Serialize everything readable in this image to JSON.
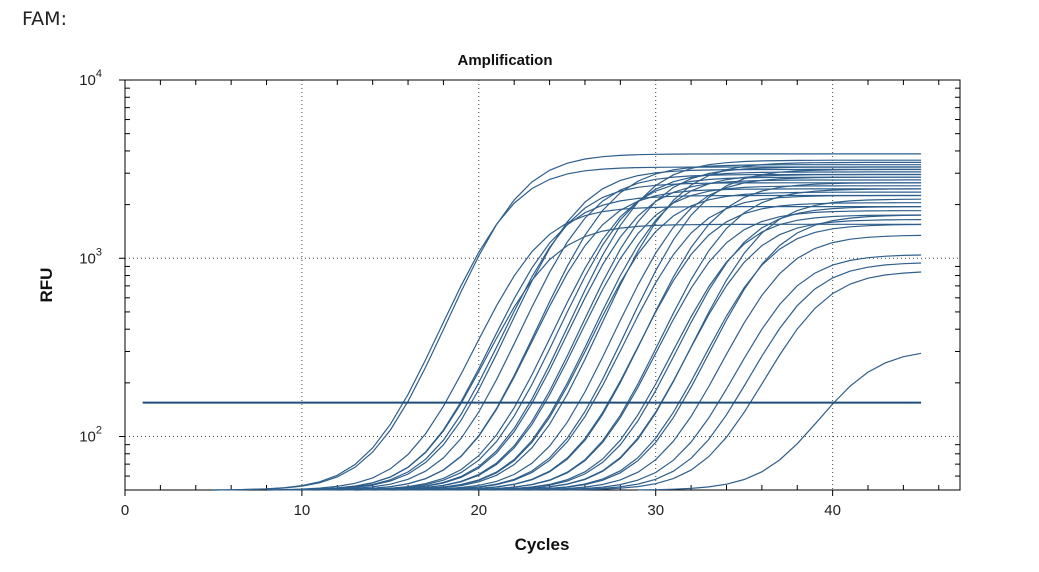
{
  "panel": {
    "label": "FAM:"
  },
  "chart_data": {
    "type": "line",
    "title": "Amplification",
    "xlabel": "Cycles",
    "ylabel": "RFU",
    "xlim": [
      0,
      47.2
    ],
    "ylim_log10": [
      1.7,
      4.0
    ],
    "y_scale": "log",
    "x_ticks": [
      0,
      10,
      20,
      30,
      40
    ],
    "y_ticks": [
      {
        "value": 100,
        "base": "10",
        "exp": "2"
      },
      {
        "value": 1000,
        "base": "10",
        "exp": "3"
      },
      {
        "value": 10000,
        "base": "10",
        "exp": "4"
      }
    ],
    "grid": true,
    "threshold": {
      "value": 155,
      "x_start": 1,
      "x_end": 45
    },
    "line_color": "#2f5f8c",
    "threshold_color": "#1f4e79",
    "end_cycle": 45,
    "curve_model": "sigmoid: midpoint = ct + 2.2, slope = 0.62 per cycle, baseline 50 RFU",
    "series": [
      {
        "ct": 19.0,
        "plateau": 3200
      },
      {
        "ct": 19.5,
        "plateau": 3800
      },
      {
        "ct": 20.5,
        "plateau": 1900
      },
      {
        "ct": 21.0,
        "plateau": 1500
      },
      {
        "ct": 21.6,
        "plateau": 2200
      },
      {
        "ct": 22.3,
        "plateau": 2600
      },
      {
        "ct": 22.8,
        "plateau": 3100
      },
      {
        "ct": 23.4,
        "plateau": 2900
      },
      {
        "ct": 24.0,
        "plateau": 2400
      },
      {
        "ct": 24.5,
        "plateau": 3300
      },
      {
        "ct": 25.2,
        "plateau": 2800
      },
      {
        "ct": 25.6,
        "plateau": 3000
      },
      {
        "ct": 26.0,
        "plateau": 2700
      },
      {
        "ct": 26.3,
        "plateau": 3500
      },
      {
        "ct": 26.6,
        "plateau": 2500
      },
      {
        "ct": 26.9,
        "plateau": 3200
      },
      {
        "ct": 27.2,
        "plateau": 2300
      },
      {
        "ct": 27.5,
        "plateau": 2900
      },
      {
        "ct": 28.1,
        "plateau": 3400
      },
      {
        "ct": 28.7,
        "plateau": 2800
      },
      {
        "ct": 29.1,
        "plateau": 2200
      },
      {
        "ct": 29.5,
        "plateau": 3100
      },
      {
        "ct": 29.8,
        "plateau": 2000
      },
      {
        "ct": 30.3,
        "plateau": 2600
      },
      {
        "ct": 30.8,
        "plateau": 1800
      },
      {
        "ct": 31.2,
        "plateau": 2400
      },
      {
        "ct": 31.6,
        "plateau": 1700
      },
      {
        "ct": 32.0,
        "plateau": 1900
      },
      {
        "ct": 32.4,
        "plateau": 1600
      },
      {
        "ct": 32.9,
        "plateau": 2100
      },
      {
        "ct": 33.3,
        "plateau": 1500
      },
      {
        "ct": 33.7,
        "plateau": 1700
      },
      {
        "ct": 34.2,
        "plateau": 1300
      },
      {
        "ct": 34.8,
        "plateau": 1000
      },
      {
        "ct": 35.5,
        "plateau": 900
      },
      {
        "ct": 36.2,
        "plateau": 800
      },
      {
        "ct": 38.5,
        "plateau": 260
      }
    ]
  }
}
